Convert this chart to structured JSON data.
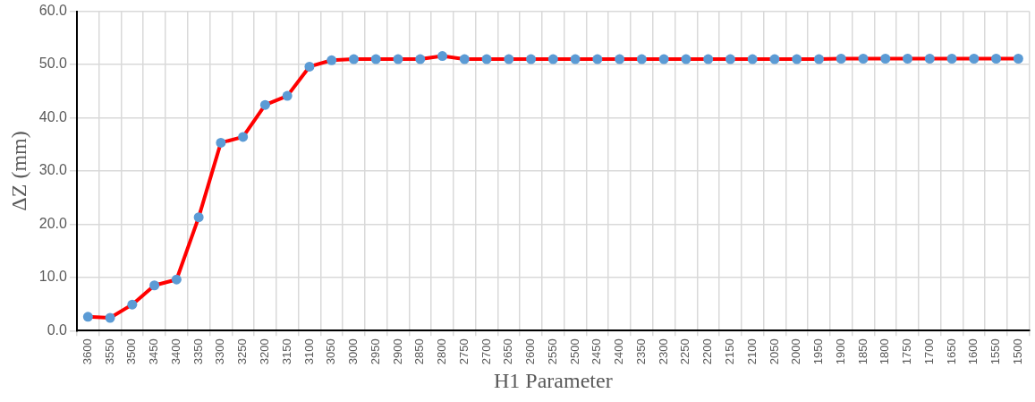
{
  "chart_data": {
    "type": "line",
    "xlabel": "H1 Parameter",
    "ylabel": "ΔZ (mm)",
    "categories": [
      "3600",
      "3550",
      "3500",
      "3450",
      "3400",
      "3350",
      "3300",
      "3250",
      "3200",
      "3150",
      "3100",
      "3050",
      "3000",
      "2950",
      "2900",
      "2850",
      "2800",
      "2750",
      "2700",
      "2650",
      "2600",
      "2550",
      "2500",
      "2450",
      "2400",
      "2350",
      "2300",
      "2250",
      "2200",
      "2150",
      "2100",
      "2050",
      "2000",
      "1950",
      "1900",
      "1850",
      "1800",
      "1750",
      "1700",
      "1650",
      "1600",
      "1550",
      "1500"
    ],
    "series": [
      {
        "color": "#ff0000",
        "values": [
          2.6,
          2.4,
          4.9,
          8.5,
          9.6,
          21.3,
          35.3,
          36.4,
          42.4,
          44.1,
          49.6,
          50.8,
          51.0,
          51.0,
          51.0,
          51.0,
          51.6,
          51.0,
          51.0,
          51.0,
          51.0,
          51.0,
          51.0,
          51.0,
          51.0,
          51.0,
          51.0,
          51.0,
          51.0,
          51.0,
          51.0,
          51.0,
          51.0,
          51.0,
          51.1,
          51.1,
          51.1,
          51.1,
          51.1,
          51.1,
          51.1,
          51.1,
          51.1
        ]
      }
    ],
    "ylim": [
      0,
      60
    ],
    "yticks": [
      {
        "value": 0,
        "label": "0.0"
      },
      {
        "value": 10,
        "label": "10.0"
      },
      {
        "value": 20,
        "label": "20.0"
      },
      {
        "value": 30,
        "label": "30.0"
      },
      {
        "value": 40,
        "label": "40.0"
      },
      {
        "value": 50,
        "label": "50.0"
      },
      {
        "value": 60,
        "label": "60.0"
      }
    ],
    "grid": true,
    "legend": false,
    "marker": "circle",
    "line_style": "solid"
  }
}
